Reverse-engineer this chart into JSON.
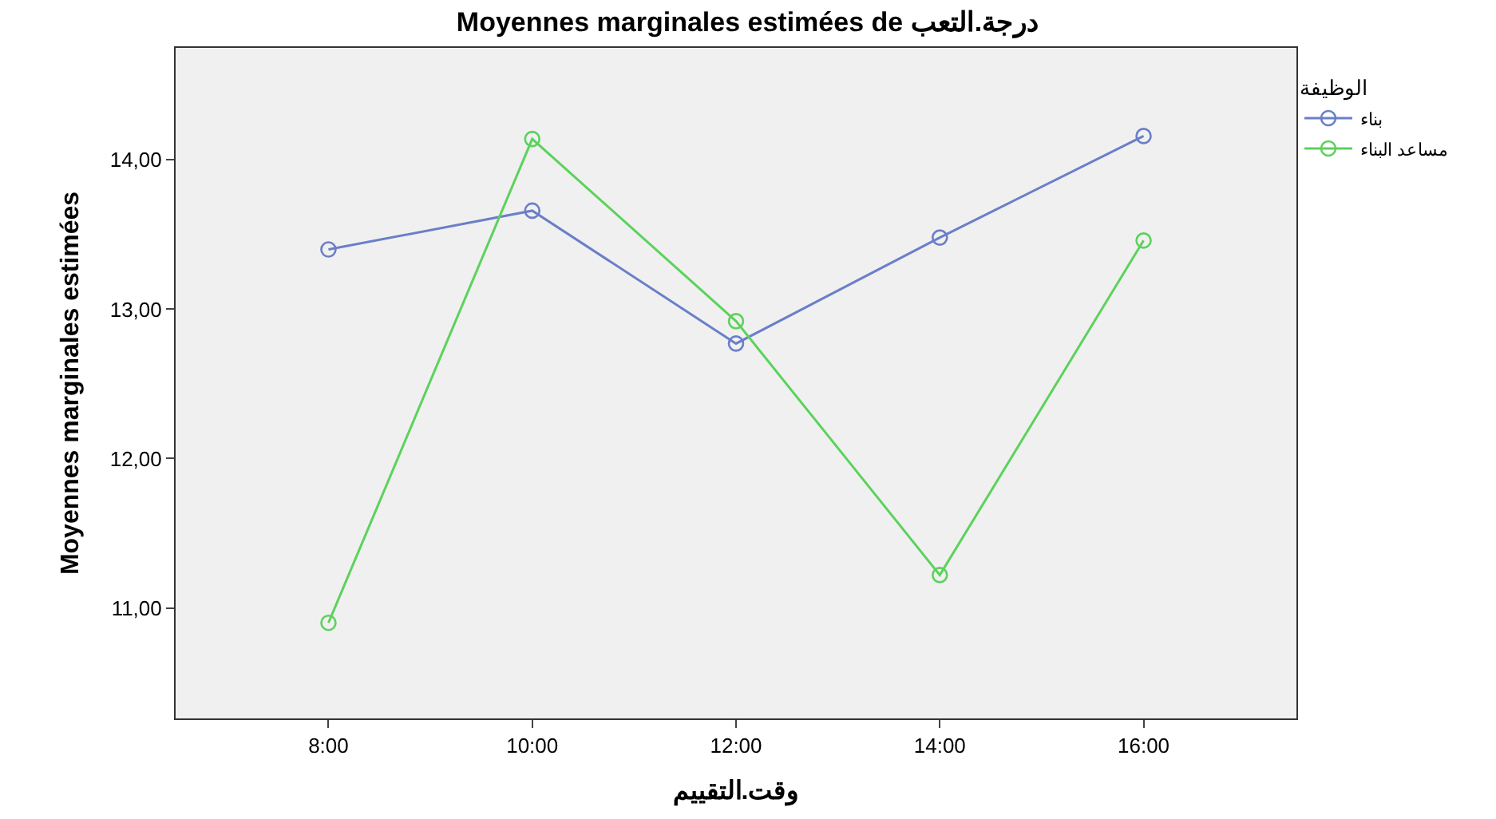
{
  "chart_data": {
    "type": "line",
    "title": "Moyennes marginales estimées de درجة.التعب",
    "xlabel": "وقت.التقييم",
    "ylabel": "Moyennes marginales estimées",
    "legend_title": "الوظيفة",
    "categories": [
      "8:00",
      "10:00",
      "12:00",
      "14:00",
      "16:00"
    ],
    "series": [
      {
        "name": "بناء",
        "color": "#6a7fc8",
        "values": [
          13.4,
          13.66,
          12.77,
          13.48,
          14.16
        ]
      },
      {
        "name": "مساعد البناء",
        "color": "#5cd25c",
        "values": [
          10.9,
          14.14,
          12.92,
          11.22,
          13.46
        ]
      }
    ],
    "ylim": [
      10.26,
      14.75
    ],
    "yticks": [
      {
        "value": 11,
        "label": "11,00"
      },
      {
        "value": 12,
        "label": "12,00"
      },
      {
        "value": 13,
        "label": "13,00"
      },
      {
        "value": 14,
        "label": "14,00"
      }
    ],
    "grid": false,
    "legend": "top right",
    "marker": "circle",
    "line_style": "solid"
  }
}
